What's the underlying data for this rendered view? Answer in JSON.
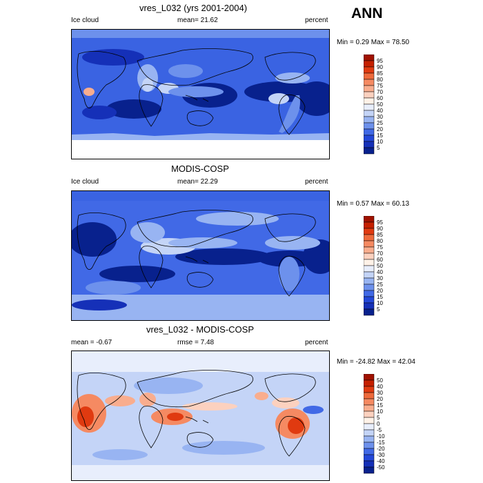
{
  "season_label": "ANN",
  "panels": [
    {
      "title": "vres_L032 (yrs 2001-2004)",
      "left_label": "Ice cloud",
      "center_label": "mean=  21.62",
      "right_label": "percent",
      "minmax": "Min =   0.29 Max =  78.50",
      "levels": [
        "95",
        "90",
        "85",
        "80",
        "75",
        "70",
        "60",
        "50",
        "40",
        "30",
        "25",
        "20",
        "15",
        "10",
        "5"
      ],
      "colors": [
        "#a01100",
        "#c52000",
        "#e03a10",
        "#ee6a3c",
        "#f58a62",
        "#f9ad8e",
        "#fcd1bf",
        "#fff2e8",
        "#e8eefc",
        "#c4d4f7",
        "#98b4f2",
        "#6d91ec",
        "#4169e6",
        "#2347d8",
        "#1530b8",
        "#08218d"
      ]
    },
    {
      "title": "MODIS-COSP",
      "left_label": "Ice cloud",
      "center_label": "mean=  22.29",
      "right_label": "percent",
      "minmax": "Min =   0.57 Max =  60.13",
      "levels": [
        "95",
        "90",
        "85",
        "80",
        "75",
        "70",
        "60",
        "50",
        "40",
        "30",
        "25",
        "20",
        "15",
        "10",
        "5"
      ],
      "colors": [
        "#a01100",
        "#c52000",
        "#e03a10",
        "#ee6a3c",
        "#f58a62",
        "#f9ad8e",
        "#fcd1bf",
        "#fff2e8",
        "#e8eefc",
        "#c4d4f7",
        "#98b4f2",
        "#6d91ec",
        "#4169e6",
        "#2347d8",
        "#1530b8",
        "#08218d"
      ]
    },
    {
      "title": "vres_L032 - MODIS-COSP",
      "left_label": "mean =  -0.67",
      "center_label": "rmse =   7.48",
      "right_label": "percent",
      "minmax": "Min = -24.82 Max =  42.04",
      "levels": [
        "50",
        "40",
        "30",
        "20",
        "15",
        "10",
        "5",
        "0",
        "-5",
        "-10",
        "-15",
        "-20",
        "-30",
        "-40",
        "-50"
      ],
      "colors": [
        "#a01100",
        "#c52000",
        "#e03a10",
        "#ee6a3c",
        "#f58a62",
        "#f9ad8e",
        "#fcd1bf",
        "#fff2e8",
        "#e8eefc",
        "#c4d4f7",
        "#98b4f2",
        "#6d91ec",
        "#4169e6",
        "#2347d8",
        "#1530b8",
        "#08218d"
      ]
    }
  ],
  "chart_data": [
    {
      "type": "heatmap",
      "title": "vres_L032 (yrs 2001-2004)",
      "variable": "Ice cloud",
      "units": "percent",
      "mean": 21.62,
      "min": 0.29,
      "max": 78.5,
      "colorbar_levels": [
        5,
        10,
        15,
        20,
        25,
        30,
        40,
        50,
        60,
        70,
        75,
        80,
        85,
        90,
        95
      ]
    },
    {
      "type": "heatmap",
      "title": "MODIS-COSP",
      "variable": "Ice cloud",
      "units": "percent",
      "mean": 22.29,
      "min": 0.57,
      "max": 60.13,
      "colorbar_levels": [
        5,
        10,
        15,
        20,
        25,
        30,
        40,
        50,
        60,
        70,
        75,
        80,
        85,
        90,
        95
      ]
    },
    {
      "type": "heatmap",
      "title": "vres_L032 - MODIS-COSP",
      "units": "percent",
      "mean": -0.67,
      "rmse": 7.48,
      "min": -24.82,
      "max": 42.04,
      "colorbar_levels": [
        -50,
        -40,
        -30,
        -20,
        -15,
        -10,
        -5,
        0,
        5,
        10,
        15,
        20,
        30,
        40,
        50
      ]
    }
  ]
}
